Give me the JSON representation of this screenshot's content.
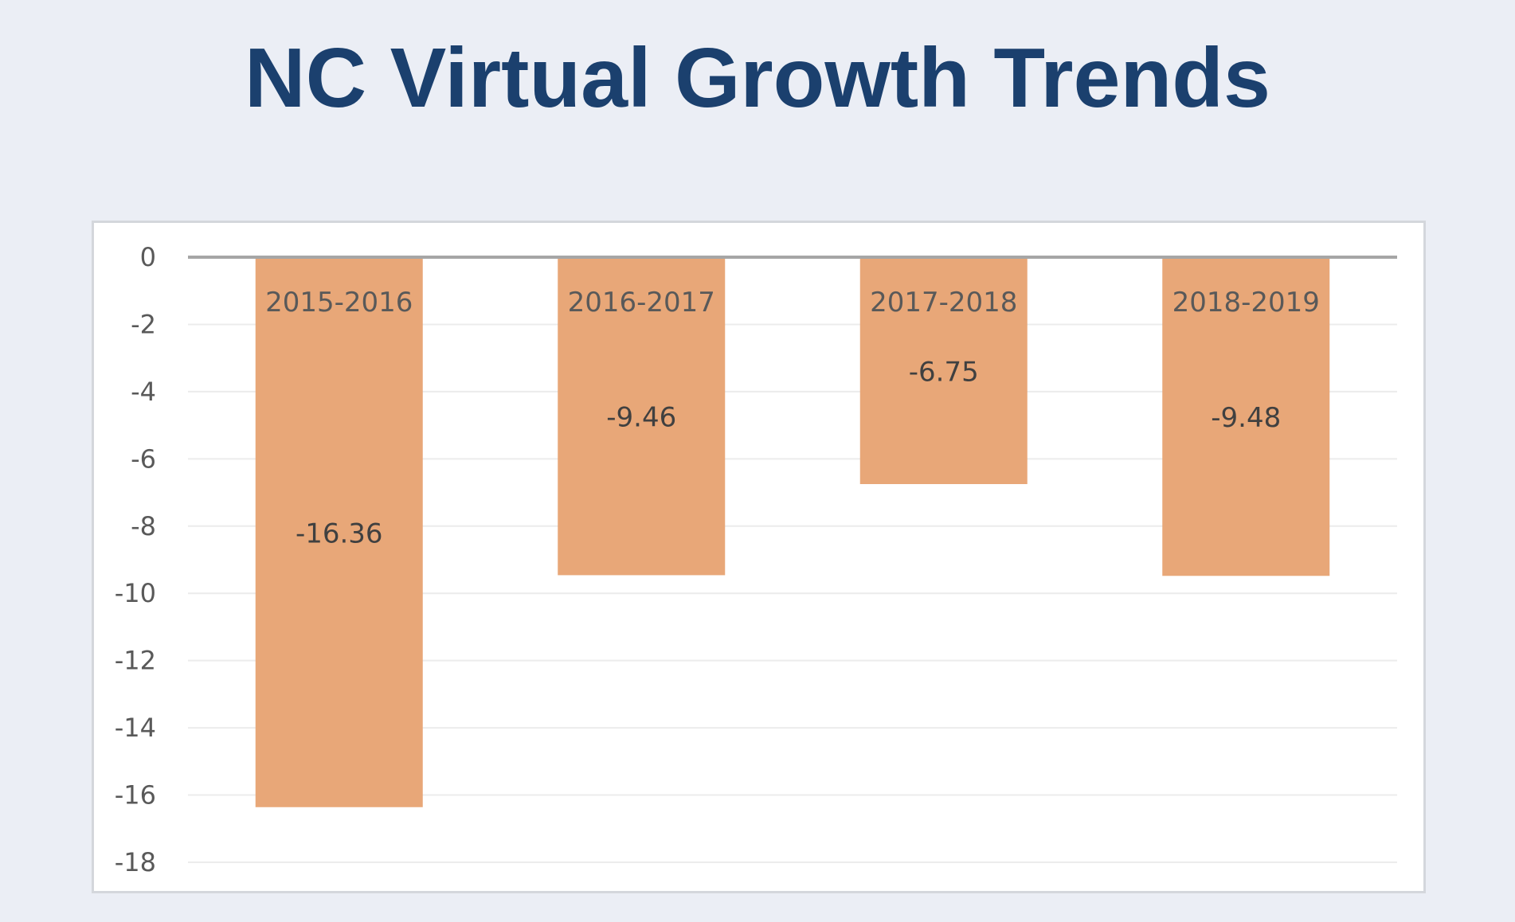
{
  "slide": {
    "title": "NC Virtual Growth Trends"
  },
  "colors": {
    "background": "#ebeef5",
    "title": "#1b406e",
    "bar": "#e8a778",
    "zero_line": "#a6a6a6",
    "gridline": "#ececec",
    "label_text": "#595959",
    "data_label_text": "#404040"
  },
  "chart_data": {
    "type": "bar",
    "title": "",
    "xlabel": "",
    "ylabel": "",
    "categories": [
      "2015-2016",
      "2016-2017",
      "2017-2018",
      "2018-2019"
    ],
    "values": [
      -16.36,
      -9.46,
      -6.75,
      -9.48
    ],
    "data_labels": [
      "-16.36",
      "-9.46",
      "-6.75",
      "-9.48"
    ],
    "ylim": [
      -18,
      0
    ],
    "y_ticks": [
      0,
      -2,
      -4,
      -6,
      -8,
      -10,
      -12,
      -14,
      -16,
      -18
    ],
    "grid": true,
    "legend": "none",
    "category_label_position": "top, near zero axis"
  }
}
